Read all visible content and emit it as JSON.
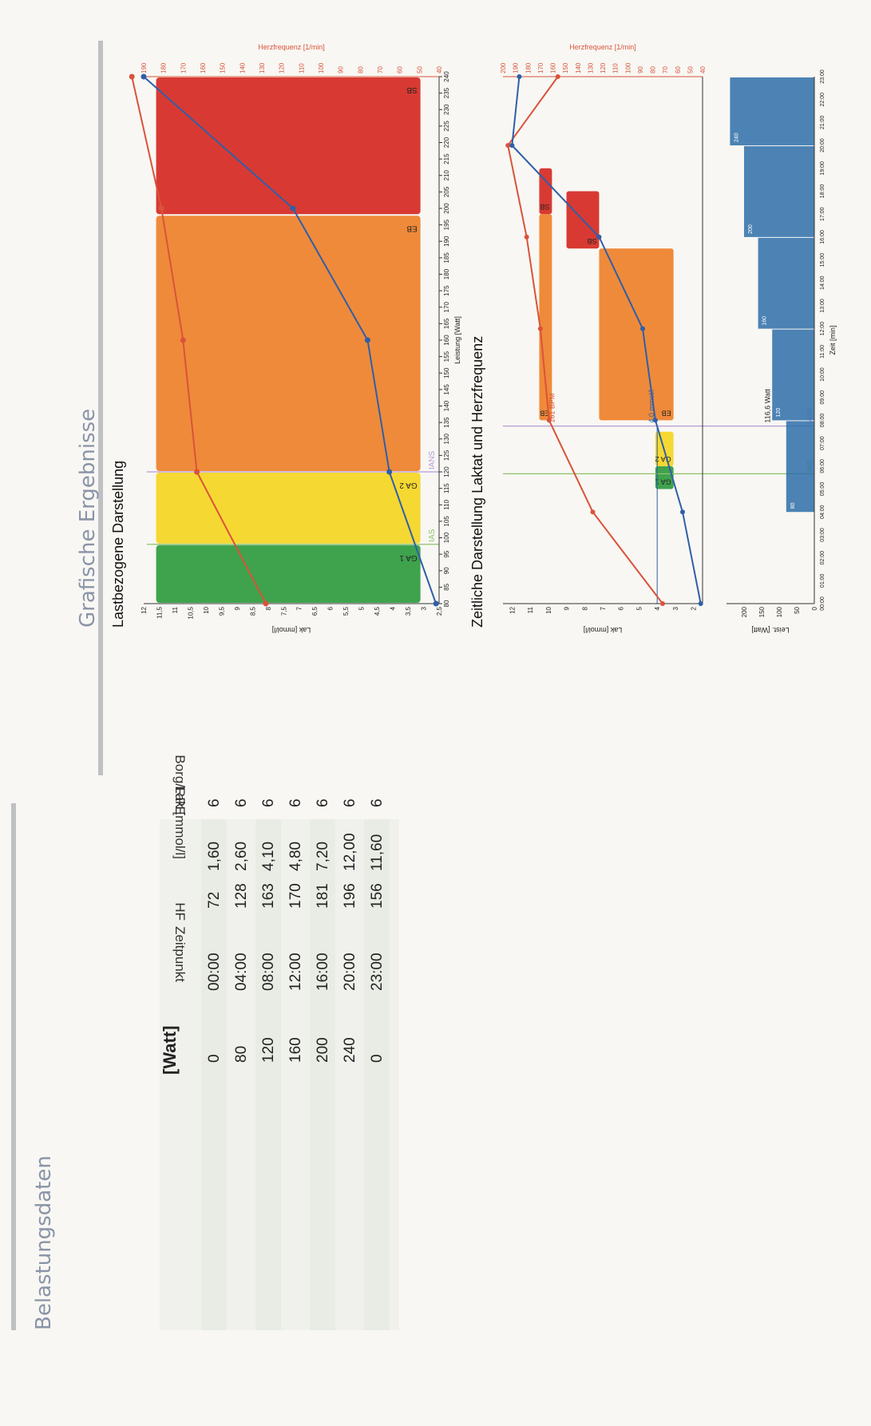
{
  "left_section": {
    "title": "Belastungsdaten",
    "watt_header": "[Watt]",
    "columns": [
      "Zeitpunkt",
      "HF",
      "Lak [mmol/l]",
      "Borg/RPE"
    ],
    "rows": [
      {
        "watt": "0",
        "time": "00:00",
        "hf": "72",
        "lak": "1,60",
        "borg": "6"
      },
      {
        "watt": "80",
        "time": "04:00",
        "hf": "128",
        "lak": "2,60",
        "borg": "6"
      },
      {
        "watt": "120",
        "time": "08:00",
        "hf": "163",
        "lak": "4,10",
        "borg": "6"
      },
      {
        "watt": "160",
        "time": "12:00",
        "hf": "170",
        "lak": "4,80",
        "borg": "6"
      },
      {
        "watt": "200",
        "time": "16:00",
        "hf": "181",
        "lak": "7,20",
        "borg": "6"
      },
      {
        "watt": "240",
        "time": "20:00",
        "hf": "196",
        "lak": "12,00",
        "borg": "6"
      },
      {
        "watt": "0",
        "time": "23:00",
        "hf": "156",
        "lak": "11,60",
        "borg": "6"
      }
    ]
  },
  "right_section": {
    "title": "Grafische Ergebnisse",
    "chart1_title": "Lastbezogene Darstellung",
    "chart2_title": "Zeitliche Darstellung Laktat und Herzfrequenz"
  },
  "colors": {
    "green": "#3fa34d",
    "yellow": "#f6d832",
    "orange": "#ef8a3a",
    "red": "#d83a33",
    "lactate_line": "#2f5fa8",
    "hr_line": "#d9533a"
  },
  "chart_data": [
    {
      "type": "line",
      "title": "Lastbezogene Darstellung",
      "xlabel": "Leistung [Watt]",
      "ylabel": "Lak [mmol/l]",
      "y2label": "Herzfrequenz [1/min]",
      "xlim": [
        80,
        240
      ],
      "ylim": [
        2.5,
        12
      ],
      "y2lim": [
        40,
        190
      ],
      "x_ticks": [
        80,
        85,
        90,
        95,
        100,
        105,
        110,
        115,
        120,
        125,
        130,
        135,
        140,
        145,
        150,
        155,
        160,
        165,
        170,
        175,
        180,
        185,
        190,
        195,
        200,
        205,
        210,
        215,
        220,
        225,
        230,
        235,
        240
      ],
      "y_ticks": [
        "2,5",
        "3",
        "3,5",
        "4",
        "4,5",
        "5",
        "5,5",
        "6",
        "6,5",
        "7",
        "7,5",
        "8",
        "8,5",
        "9",
        "9,5",
        "10",
        "10,5",
        "11",
        "11,5",
        "12"
      ],
      "y2_ticks": [
        40,
        50,
        60,
        70,
        80,
        90,
        100,
        110,
        120,
        130,
        140,
        150,
        160,
        170,
        180,
        190
      ],
      "zones": [
        {
          "name": "GA 1",
          "from": 80,
          "to": 98,
          "color": "#3fa34d"
        },
        {
          "name": "GA 2",
          "from": 98,
          "to": 120,
          "color": "#f6d832"
        },
        {
          "name": "EB",
          "from": 120,
          "to": 198,
          "color": "#ef8a3a"
        },
        {
          "name": "SB",
          "from": 198,
          "to": 240,
          "color": "#d83a33"
        }
      ],
      "markers": [
        {
          "name": "IAS",
          "x": 98,
          "color": "#8dc26b"
        },
        {
          "name": "IANS",
          "x": 120,
          "color": "#b79ad6"
        }
      ],
      "series": [
        {
          "name": "Lak [mmol/l]",
          "x": [
            80,
            120,
            160,
            200,
            240
          ],
          "values": [
            2.6,
            4.1,
            4.8,
            7.2,
            12.0
          ],
          "axis": "left",
          "color": "#2f5fa8"
        },
        {
          "name": "Herzfrequenz [1/min]",
          "x": [
            80,
            120,
            160,
            200,
            240
          ],
          "values": [
            128,
            163,
            170,
            181,
            196
          ],
          "axis": "right",
          "color": "#d9533a"
        }
      ]
    },
    {
      "type": "line",
      "title": "Zeitliche Darstellung Laktat und Herzfrequenz",
      "xlabel": "Zeit [min]",
      "ylabel": "Lak [mmol/l]",
      "y2label": "Herzfrequenz [1/min]",
      "power_label": "Leist. [Watt]",
      "x_ticks": [
        "00:00",
        "01:00",
        "02:00",
        "03:00",
        "04:00",
        "05:00",
        "06:00",
        "07:00",
        "08:00",
        "09:00",
        "10:00",
        "11:00",
        "12:00",
        "13:00",
        "14:00",
        "15:00",
        "16:00",
        "17:00",
        "18:00",
        "19:00",
        "20:00",
        "21:00",
        "22:00",
        "23:00"
      ],
      "y_ticks": [
        2,
        3,
        4,
        5,
        6,
        7,
        8,
        9,
        10,
        11,
        12
      ],
      "y2_ticks": [
        40,
        50,
        60,
        70,
        80,
        90,
        100,
        110,
        120,
        130,
        140,
        150,
        160,
        170,
        180,
        190,
        200
      ],
      "power_ticks": [
        0,
        50,
        100,
        150,
        200
      ],
      "annotations": [
        "4,0 mmol/l",
        "161 BPM",
        "116,6 Watt",
        "IAS",
        "IANS",
        "GA 1",
        "GA 2",
        "EB",
        "SB"
      ],
      "series": [
        {
          "name": "Lak [mmol/l]",
          "x": [
            "00:00",
            "04:00",
            "08:00",
            "12:00",
            "16:00",
            "20:00",
            "23:00"
          ],
          "values": [
            1.6,
            2.6,
            4.1,
            4.8,
            7.2,
            12.0,
            11.6
          ]
        },
        {
          "name": "Herzfrequenz [1/min]",
          "x": [
            "00:00",
            "04:00",
            "08:00",
            "12:00",
            "16:00",
            "20:00",
            "23:00"
          ],
          "values": [
            72,
            128,
            163,
            170,
            181,
            196,
            156
          ]
        },
        {
          "name": "Leist. [Watt]",
          "x": [
            "00:00",
            "04:00",
            "08:00",
            "12:00",
            "16:00",
            "20:00",
            "23:00"
          ],
          "values": [
            0,
            80,
            120,
            160,
            200,
            240,
            0
          ]
        }
      ]
    }
  ]
}
